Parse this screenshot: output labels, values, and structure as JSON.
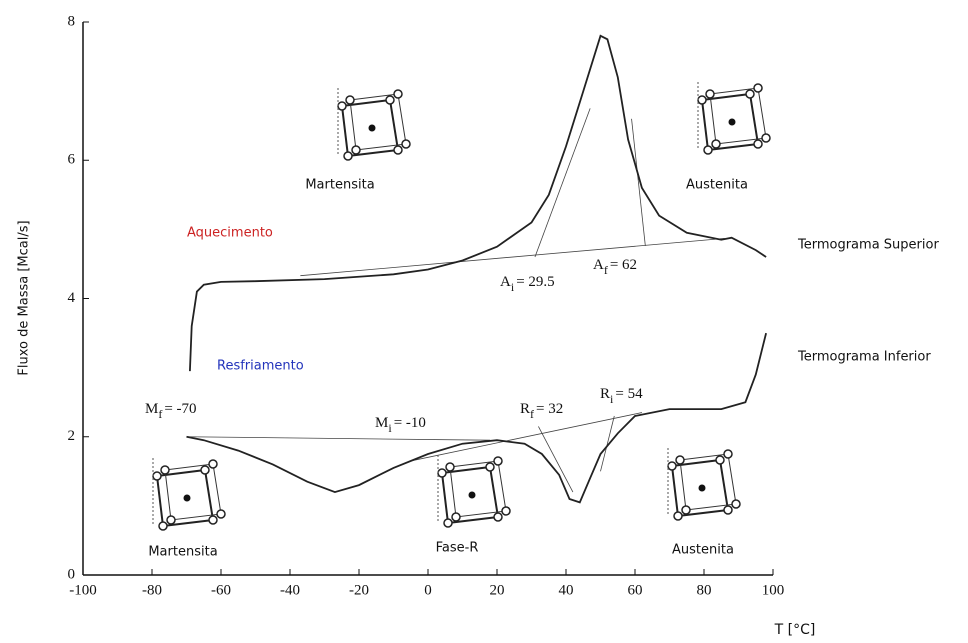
{
  "chart_data": {
    "type": "line",
    "xlabel": "T [°C]",
    "ylabel": "Fluxo de Massa [Mcal/s]",
    "xlim": [
      -100,
      100
    ],
    "xticks": [
      -100,
      -80,
      -60,
      -40,
      -20,
      0,
      20,
      40,
      60,
      80,
      100
    ],
    "ylim": [
      0,
      8
    ],
    "yticks": [
      0,
      2,
      4,
      6,
      8
    ],
    "series": [
      {
        "name": "Termograma Superior",
        "process": "Aquecimento",
        "color": "#222222",
        "process_color": "#cc2222",
        "x": [
          -69,
          -68.5,
          -67,
          -65,
          -60,
          -50,
          -30,
          -10,
          0,
          10,
          20,
          30,
          35,
          40,
          45,
          50,
          52,
          55,
          58,
          62,
          67,
          75,
          85,
          88,
          95,
          98
        ],
        "values": [
          2.95,
          3.6,
          4.1,
          4.2,
          4.24,
          4.25,
          4.28,
          4.35,
          4.42,
          4.55,
          4.75,
          5.1,
          5.5,
          6.2,
          7.0,
          7.8,
          7.75,
          7.2,
          6.3,
          5.6,
          5.2,
          4.95,
          4.85,
          4.88,
          4.7,
          4.6
        ]
      },
      {
        "name": "Termograma Inferior",
        "process": "Resfriamento",
        "color": "#222222",
        "process_color": "#2233bb",
        "x": [
          -70,
          -65,
          -55,
          -45,
          -35,
          -27,
          -20,
          -10,
          0,
          10,
          20,
          28,
          33,
          38,
          41,
          44,
          47,
          50,
          55,
          60,
          70,
          85,
          92,
          95,
          98
        ],
        "values": [
          2.0,
          1.95,
          1.8,
          1.6,
          1.35,
          1.2,
          1.3,
          1.55,
          1.75,
          1.9,
          1.95,
          1.9,
          1.75,
          1.45,
          1.1,
          1.05,
          1.4,
          1.75,
          2.05,
          2.3,
          2.4,
          2.4,
          2.5,
          2.9,
          3.5
        ]
      }
    ],
    "guide_lines": [
      {
        "x": [
          -37,
          86
        ],
        "y": [
          4.33,
          4.87
        ]
      },
      {
        "x": [
          31,
          47
        ],
        "y": [
          4.6,
          6.75
        ]
      },
      {
        "x": [
          63,
          59
        ],
        "y": [
          4.76,
          6.6
        ]
      },
      {
        "x": [
          -70,
          18
        ],
        "y": [
          2.0,
          1.95
        ]
      },
      {
        "x": [
          -5,
          62
        ],
        "y": [
          1.65,
          2.35
        ]
      },
      {
        "x": [
          32,
          42
        ],
        "y": [
          2.15,
          1.2
        ]
      },
      {
        "x": [
          54,
          50
        ],
        "y": [
          2.3,
          1.5
        ]
      }
    ],
    "annotations": [
      {
        "symbol": "A",
        "subscript": "i",
        "label": "= 29.5"
      },
      {
        "symbol": "A",
        "subscript": "f",
        "label": "= 62"
      },
      {
        "symbol": "M",
        "subscript": "f",
        "label": "= -70"
      },
      {
        "symbol": "M",
        "subscript": "i",
        "label": "= -10"
      },
      {
        "symbol": "R",
        "subscript": "f",
        "label": "= 32"
      },
      {
        "symbol": "R",
        "subscript": "i",
        "label": "= 54"
      }
    ],
    "phase_labels": [
      "Martensita",
      "Austenita",
      "Martensita",
      "Fase-R",
      "Austenita"
    ]
  }
}
